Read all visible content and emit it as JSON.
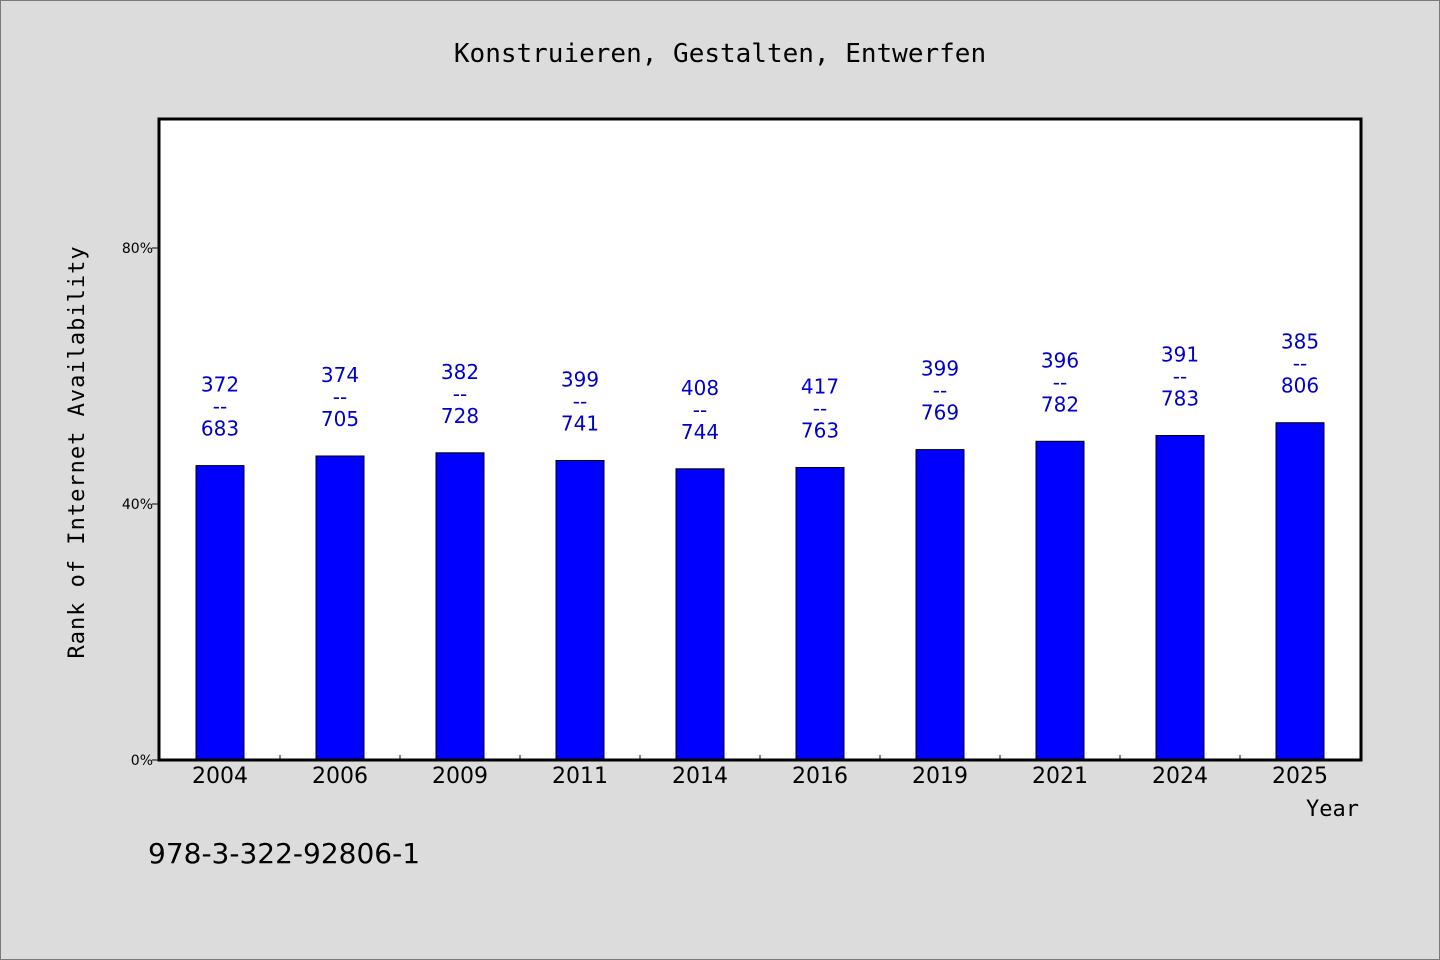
{
  "chart_data": {
    "type": "bar",
    "title": "Konstruieren, Gestalten, Entwerfen",
    "xlabel": "Year",
    "ylabel": "Rank of Internet Availability",
    "categories": [
      "2004",
      "2006",
      "2009",
      "2011",
      "2014",
      "2016",
      "2019",
      "2021",
      "2024",
      "2025"
    ],
    "values": [
      46,
      47.5,
      48,
      46.8,
      45.5,
      45.7,
      48.5,
      49.8,
      50.7,
      52.7
    ],
    "value_unit": "%",
    "ylim": [
      0,
      100
    ],
    "yticks": [
      0,
      40,
      80
    ],
    "ytick_labels": [
      "0%",
      "40%",
      "80%"
    ],
    "bar_labels": [
      {
        "top": "372",
        "sep": "--",
        "bottom": "683"
      },
      {
        "top": "374",
        "sep": "--",
        "bottom": "705"
      },
      {
        "top": "382",
        "sep": "--",
        "bottom": "728"
      },
      {
        "top": "399",
        "sep": "--",
        "bottom": "741"
      },
      {
        "top": "408",
        "sep": "--",
        "bottom": "744"
      },
      {
        "top": "417",
        "sep": "--",
        "bottom": "763"
      },
      {
        "top": "399",
        "sep": "--",
        "bottom": "769"
      },
      {
        "top": "396",
        "sep": "--",
        "bottom": "782"
      },
      {
        "top": "391",
        "sep": "--",
        "bottom": "783"
      },
      {
        "top": "385",
        "sep": "--",
        "bottom": "806"
      }
    ],
    "grid": false,
    "legend": "none",
    "colors": {
      "bar": "#0000ff",
      "label": "#0000cc",
      "background": "#dcdcdc",
      "plot_background": "#ffffff"
    }
  },
  "footer": {
    "isbn": "978-3-322-92806-1"
  }
}
